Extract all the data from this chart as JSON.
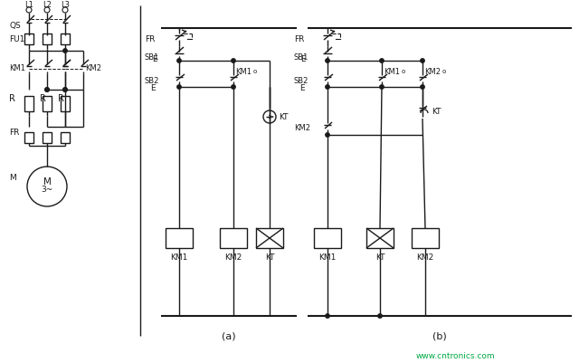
{
  "bg_color": "#ffffff",
  "line_color": "#1a1a1a",
  "watermark": "www.cntronics.com",
  "watermark_color": "#00aa44",
  "label_a": "(a)",
  "label_b": "(b)"
}
